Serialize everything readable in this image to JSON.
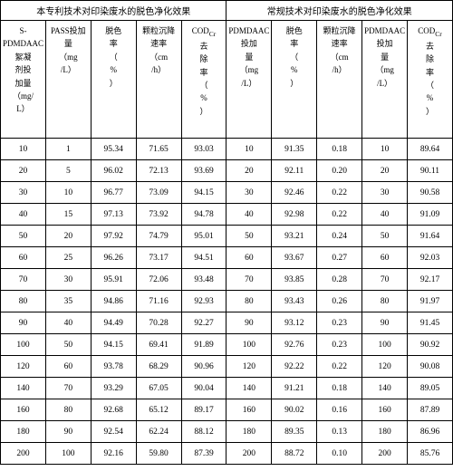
{
  "group_headers": [
    "本专利技术对印染废水的脱色净化效果",
    "常规技术对印染废水的脱色净化效果"
  ],
  "col_headers": [
    "S-PDMDAAC<br>絮凝<br>剂投<br>加量<br>（mg/<br>L）",
    "PASS投加<br>量<br>（mg<br>/L）",
    "脱色<br>率<br>（<br>%<br>）",
    "颗粒沉降<br>速率<br>（cm<br>/h）",
    "COD<sub>Cr</sub><br>去<br>除<br>率<br>（<br>%<br>）",
    "PDMDAAC<br>投加<br>量<br>（mg<br>/L）",
    "脱色<br>率<br>（<br>%<br>）",
    "颗粒沉降<br>速率<br>（cm<br>/h）",
    "PDMDAAC<br>投加<br>量<br>（mg<br>/L）",
    "COD<sub>Cr</sub><br>去<br>除<br>率<br>（<br>%<br>）"
  ],
  "rows": [
    [
      "10",
      "1",
      "95.34",
      "71.65",
      "93.03",
      "10",
      "91.35",
      "0.18",
      "10",
      "89.64"
    ],
    [
      "20",
      "5",
      "96.02",
      "72.13",
      "93.69",
      "20",
      "92.11",
      "0.20",
      "20",
      "90.11"
    ],
    [
      "30",
      "10",
      "96.77",
      "73.09",
      "94.15",
      "30",
      "92.46",
      "0.22",
      "30",
      "90.58"
    ],
    [
      "40",
      "15",
      "97.13",
      "73.92",
      "94.78",
      "40",
      "92.98",
      "0.22",
      "40",
      "91.09"
    ],
    [
      "50",
      "20",
      "97.92",
      "74.79",
      "95.01",
      "50",
      "93.21",
      "0.24",
      "50",
      "91.64"
    ],
    [
      "60",
      "25",
      "96.26",
      "73.17",
      "94.51",
      "60",
      "93.67",
      "0.27",
      "60",
      "92.03"
    ],
    [
      "70",
      "30",
      "95.91",
      "72.06",
      "93.48",
      "70",
      "93.85",
      "0.28",
      "70",
      "92.17"
    ],
    [
      "80",
      "35",
      "94.86",
      "71.16",
      "92.93",
      "80",
      "93.43",
      "0.26",
      "80",
      "91.97"
    ],
    [
      "90",
      "40",
      "94.49",
      "70.28",
      "92.27",
      "90",
      "93.12",
      "0.23",
      "90",
      "91.45"
    ],
    [
      "100",
      "50",
      "94.15",
      "69.41",
      "91.89",
      "100",
      "92.76",
      "0.23",
      "100",
      "90.92"
    ],
    [
      "120",
      "60",
      "93.78",
      "68.29",
      "90.96",
      "120",
      "92.22",
      "0.22",
      "120",
      "90.08"
    ],
    [
      "140",
      "70",
      "93.29",
      "67.05",
      "90.04",
      "140",
      "91.21",
      "0.18",
      "140",
      "89.05"
    ],
    [
      "160",
      "80",
      "92.68",
      "65.12",
      "89.17",
      "160",
      "90.02",
      "0.16",
      "160",
      "87.89"
    ],
    [
      "180",
      "90",
      "92.54",
      "62.24",
      "88.12",
      "180",
      "89.35",
      "0.13",
      "180",
      "86.96"
    ],
    [
      "200",
      "100",
      "92.16",
      "59.80",
      "87.39",
      "200",
      "88.72",
      "0.10",
      "200",
      "85.76"
    ]
  ]
}
